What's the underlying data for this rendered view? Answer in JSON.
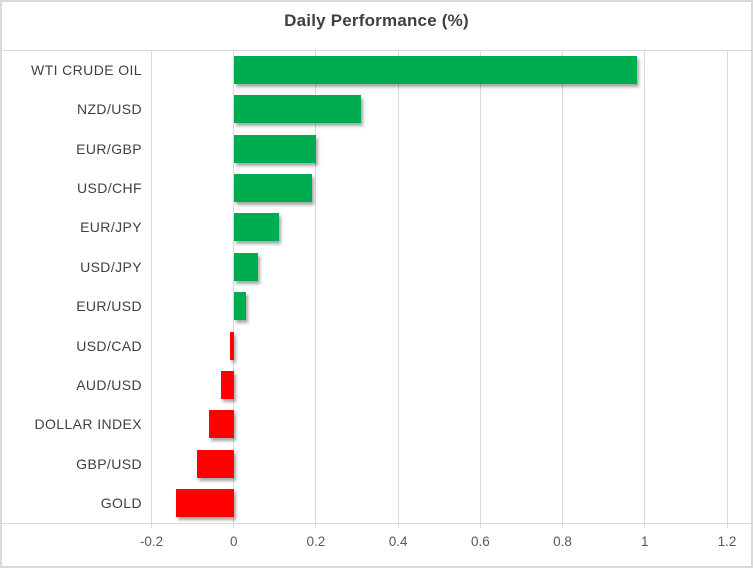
{
  "chart_data": {
    "type": "bar",
    "orientation": "horizontal",
    "title": "Daily Performance (%)",
    "categories": [
      "WTI CRUDE OIL",
      "NZD/USD",
      "EUR/GBP",
      "USD/CHF",
      "EUR/JPY",
      "USD/JPY",
      "EUR/USD",
      "USD/CAD",
      "AUD/USD",
      "DOLLAR INDEX",
      "GBP/USD",
      "GOLD"
    ],
    "values": [
      0.98,
      0.31,
      0.2,
      0.19,
      0.11,
      0.06,
      0.03,
      -0.01,
      -0.03,
      -0.06,
      -0.09,
      -0.14
    ],
    "xlim": [
      -0.2,
      1.2
    ],
    "x_ticks": [
      -0.2,
      0,
      0.2,
      0.4,
      0.6,
      0.8,
      1,
      1.2
    ],
    "x_tick_labels": [
      "-0.2",
      "0",
      "0.2",
      "0.4",
      "0.6",
      "0.8",
      "1",
      "1.2"
    ],
    "grid": true,
    "legend": false,
    "ylabel": "",
    "xlabel": "",
    "colors": {
      "positive": "#00AC50",
      "negative": "#FF0000",
      "gridline": "#D9D9D9",
      "axis_line": "#D9D9D9",
      "title": "#3F3F3F",
      "category_label": "#404040",
      "tick_label": "#595959",
      "border": "#D9D9D9",
      "background": "#FFFFFF"
    }
  }
}
